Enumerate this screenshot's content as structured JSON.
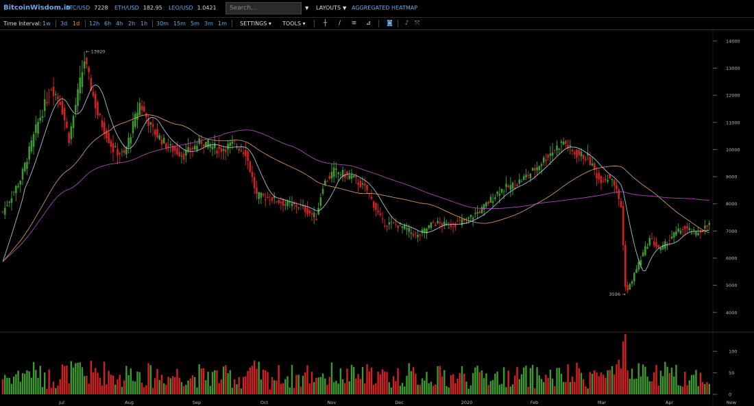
{
  "brand": "BitcoinWisdom.io",
  "tickers": [
    {
      "symbol": "BTC/USD",
      "price": "7228"
    },
    {
      "symbol": "ETH/USD",
      "price": "182.95"
    },
    {
      "symbol": "LEO/USD",
      "price": "1.0421"
    }
  ],
  "search": {
    "placeholder": "Search..."
  },
  "nav": {
    "layouts": "LAYOUTS",
    "heatmap": "AGGREGATED HEATMAP"
  },
  "toolbar": {
    "time_interval_label": "Time Interval:",
    "intervals": [
      "1w",
      "3d",
      "1d",
      "12h",
      "6h",
      "4h",
      "2h",
      "1h",
      "30m",
      "15m",
      "5m",
      "3m",
      "1m"
    ],
    "active_interval": "1d",
    "settings": "SETTINGS",
    "tools": "TOOLS",
    "tool_icons": [
      "crosshair-icon",
      "line-icon",
      "horizontal-lines-icon",
      "fib-icon",
      "camera-icon",
      "bell-icon",
      "expand-icon"
    ]
  },
  "colors": {
    "up": "#3c9a2e",
    "down": "#d42020",
    "ma_fast": "#b8d8f0",
    "ma_mid": "#e8a860",
    "ma_slow": "#c050c8"
  },
  "chart_data": {
    "type": "candlestick",
    "price_axis": {
      "ticks": [
        4000,
        5000,
        6000,
        7000,
        8000,
        9000,
        10000,
        11000,
        12000,
        13000,
        14000
      ],
      "ylim": [
        3300,
        14300
      ]
    },
    "volume_axis": {
      "ticks": [
        0,
        50,
        100
      ],
      "ylim": [
        0,
        140
      ]
    },
    "time_labels": [
      "Jul",
      "Aug",
      "Sep",
      "Oct",
      "Nov",
      "Dec",
      "2020",
      "Feb",
      "Mar",
      "Apr",
      "Now"
    ],
    "annotations": {
      "high": "13920",
      "low": "3596"
    },
    "anchors": [
      {
        "i": 0,
        "p": 7700
      },
      {
        "i": 8,
        "p": 8900
      },
      {
        "i": 16,
        "p": 11000
      },
      {
        "i": 22,
        "p": 12300
      },
      {
        "i": 26,
        "p": 11800
      },
      {
        "i": 30,
        "p": 10400
      },
      {
        "i": 37,
        "p": 13300
      },
      {
        "i": 43,
        "p": 11300
      },
      {
        "i": 50,
        "p": 10000
      },
      {
        "i": 55,
        "p": 9800
      },
      {
        "i": 62,
        "p": 11700
      },
      {
        "i": 68,
        "p": 10700
      },
      {
        "i": 75,
        "p": 10100
      },
      {
        "i": 82,
        "p": 9800
      },
      {
        "i": 90,
        "p": 10300
      },
      {
        "i": 98,
        "p": 10000
      },
      {
        "i": 105,
        "p": 10200
      },
      {
        "i": 110,
        "p": 9900
      },
      {
        "i": 115,
        "p": 8300
      },
      {
        "i": 122,
        "p": 8200
      },
      {
        "i": 128,
        "p": 8000
      },
      {
        "i": 135,
        "p": 7900
      },
      {
        "i": 142,
        "p": 7500
      },
      {
        "i": 145,
        "p": 8700
      },
      {
        "i": 150,
        "p": 9200
      },
      {
        "i": 158,
        "p": 9000
      },
      {
        "i": 165,
        "p": 8500
      },
      {
        "i": 172,
        "p": 7300
      },
      {
        "i": 180,
        "p": 7200
      },
      {
        "i": 188,
        "p": 6800
      },
      {
        "i": 195,
        "p": 7300
      },
      {
        "i": 202,
        "p": 7200
      },
      {
        "i": 210,
        "p": 7400
      },
      {
        "i": 217,
        "p": 7800
      },
      {
        "i": 225,
        "p": 8500
      },
      {
        "i": 232,
        "p": 8700
      },
      {
        "i": 240,
        "p": 9200
      },
      {
        "i": 247,
        "p": 9800
      },
      {
        "i": 254,
        "p": 10300
      },
      {
        "i": 258,
        "p": 9900
      },
      {
        "i": 265,
        "p": 9700
      },
      {
        "i": 270,
        "p": 8900
      },
      {
        "i": 276,
        "p": 9000
      },
      {
        "i": 280,
        "p": 7900
      },
      {
        "i": 282,
        "p": 5000
      },
      {
        "i": 283,
        "p": 4800
      },
      {
        "i": 288,
        "p": 5800
      },
      {
        "i": 293,
        "p": 6700
      },
      {
        "i": 298,
        "p": 6300
      },
      {
        "i": 303,
        "p": 6800
      },
      {
        "i": 308,
        "p": 7100
      },
      {
        "i": 314,
        "p": 6900
      },
      {
        "i": 320,
        "p": 7228
      }
    ]
  }
}
